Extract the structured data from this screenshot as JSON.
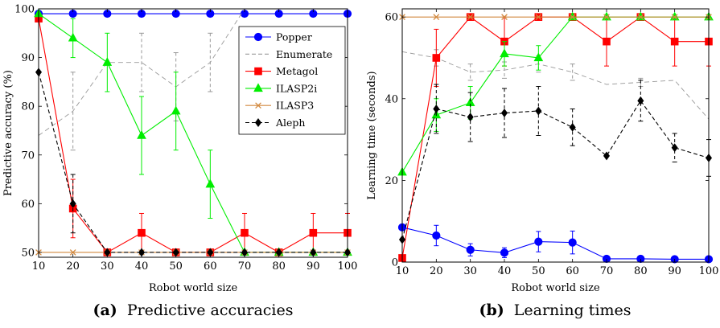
{
  "chart_data": [
    {
      "type": "line",
      "caption_letter": "(a)",
      "caption": "Predictive accuracies",
      "xlabel": "Robot world size",
      "ylabel": "Predictive accuracy (%)",
      "x": [
        10,
        20,
        30,
        40,
        50,
        60,
        70,
        80,
        90,
        100
      ],
      "xlim": [
        10,
        100
      ],
      "ylim": [
        49,
        100
      ],
      "yticks": [
        50,
        60,
        70,
        80,
        90,
        100
      ],
      "legend": "top-right",
      "grid": false,
      "series": [
        {
          "name": "Popper",
          "color": "#0000ff",
          "marker": "circle",
          "dash": "solid",
          "values": [
            99,
            99,
            99,
            99,
            99,
            99,
            99,
            99,
            99,
            99
          ],
          "errors": [
            0,
            0,
            0,
            0,
            0,
            0,
            0,
            0,
            0,
            0
          ]
        },
        {
          "name": "Enumerate",
          "color": "#999999",
          "marker": "none",
          "dash": "dashed",
          "values": [
            74,
            79,
            89,
            89,
            84,
            89,
            100,
            100,
            100,
            100
          ],
          "errors": [
            0,
            8,
            0,
            6,
            7,
            6,
            0,
            0,
            0,
            0
          ]
        },
        {
          "name": "Metagol",
          "color": "#ff0000",
          "marker": "square",
          "dash": "solid",
          "values": [
            98,
            59,
            50,
            54,
            50,
            50,
            54,
            50,
            54,
            54
          ],
          "errors": [
            0,
            6,
            0,
            4,
            0,
            0,
            4,
            0,
            4,
            4
          ]
        },
        {
          "name": "ILASP2i",
          "color": "#00ee00",
          "marker": "triangle",
          "dash": "solid",
          "values": [
            99,
            94,
            89,
            74,
            79,
            64,
            50,
            50,
            50,
            50
          ],
          "errors": [
            0,
            4,
            6,
            8,
            8,
            7,
            0,
            0,
            0,
            0
          ]
        },
        {
          "name": "ILASP3",
          "color": "#d2893f",
          "marker": "x",
          "dash": "solid",
          "values": [
            50,
            50,
            50,
            50,
            50,
            50,
            50,
            50,
            50,
            50
          ],
          "errors": [
            0,
            0,
            0,
            0,
            0,
            0,
            0,
            0,
            0,
            0
          ]
        },
        {
          "name": "Aleph",
          "color": "#000000",
          "marker": "diamond",
          "dash": "dashed",
          "values": [
            87,
            60,
            50,
            50,
            50,
            50,
            50,
            50,
            50,
            50
          ],
          "errors": [
            0,
            6,
            0,
            0,
            0,
            0,
            0,
            0,
            0,
            0
          ]
        }
      ]
    },
    {
      "type": "line",
      "caption_letter": "(b)",
      "caption": "Learning times",
      "xlabel": "Robot world size",
      "ylabel": "Learning time (seconds)",
      "x": [
        10,
        20,
        30,
        40,
        50,
        60,
        70,
        80,
        90,
        100
      ],
      "xlim": [
        10,
        100
      ],
      "ylim": [
        0,
        62
      ],
      "yticks": [
        0,
        20,
        40,
        60
      ],
      "grid": false,
      "series": [
        {
          "name": "Popper",
          "color": "#0000ff",
          "marker": "circle",
          "dash": "solid",
          "values": [
            8.5,
            6.5,
            3,
            2.3,
            5,
            4.8,
            0.8,
            0.8,
            0.7,
            0.7
          ],
          "errors": [
            0,
            2.5,
            1.5,
            1.2,
            2.5,
            2.8,
            0,
            0,
            0,
            0
          ]
        },
        {
          "name": "Enumerate",
          "color": "#999999",
          "marker": "none",
          "dash": "dashed",
          "values": [
            51.5,
            50,
            46.5,
            47,
            48.5,
            46.5,
            43.5,
            44,
            44.5,
            35
          ],
          "errors": [
            0,
            2,
            2,
            2,
            2,
            2,
            0,
            1,
            0,
            0
          ]
        },
        {
          "name": "Metagol",
          "color": "#ff0000",
          "marker": "square",
          "dash": "solid",
          "values": [
            1,
            50,
            60,
            54,
            60,
            60,
            54,
            60,
            54,
            54
          ],
          "errors": [
            0,
            7,
            0,
            6,
            0,
            0,
            6,
            0,
            6,
            6
          ]
        },
        {
          "name": "ILASP2i",
          "color": "#00ee00",
          "marker": "triangle",
          "dash": "solid",
          "values": [
            22,
            36,
            39,
            51,
            50,
            60,
            60,
            60,
            60,
            60
          ],
          "errors": [
            0,
            4,
            4,
            3,
            3,
            0,
            0,
            0,
            0,
            0
          ]
        },
        {
          "name": "ILASP3",
          "color": "#d2893f",
          "marker": "x",
          "dash": "solid",
          "values": [
            60,
            60,
            60,
            60,
            60,
            60,
            60,
            60,
            60,
            60
          ],
          "errors": [
            0,
            0,
            0,
            0,
            0,
            0,
            0,
            0,
            0,
            0
          ]
        },
        {
          "name": "Aleph",
          "color": "#000000",
          "marker": "diamond",
          "dash": "dashed",
          "values": [
            5.5,
            37.5,
            35.5,
            36.5,
            37,
            33,
            26,
            39.5,
            28,
            25.5
          ],
          "errors": [
            0,
            6,
            6,
            6,
            6,
            4.5,
            0,
            5,
            3.5,
            4.5
          ]
        }
      ]
    }
  ]
}
